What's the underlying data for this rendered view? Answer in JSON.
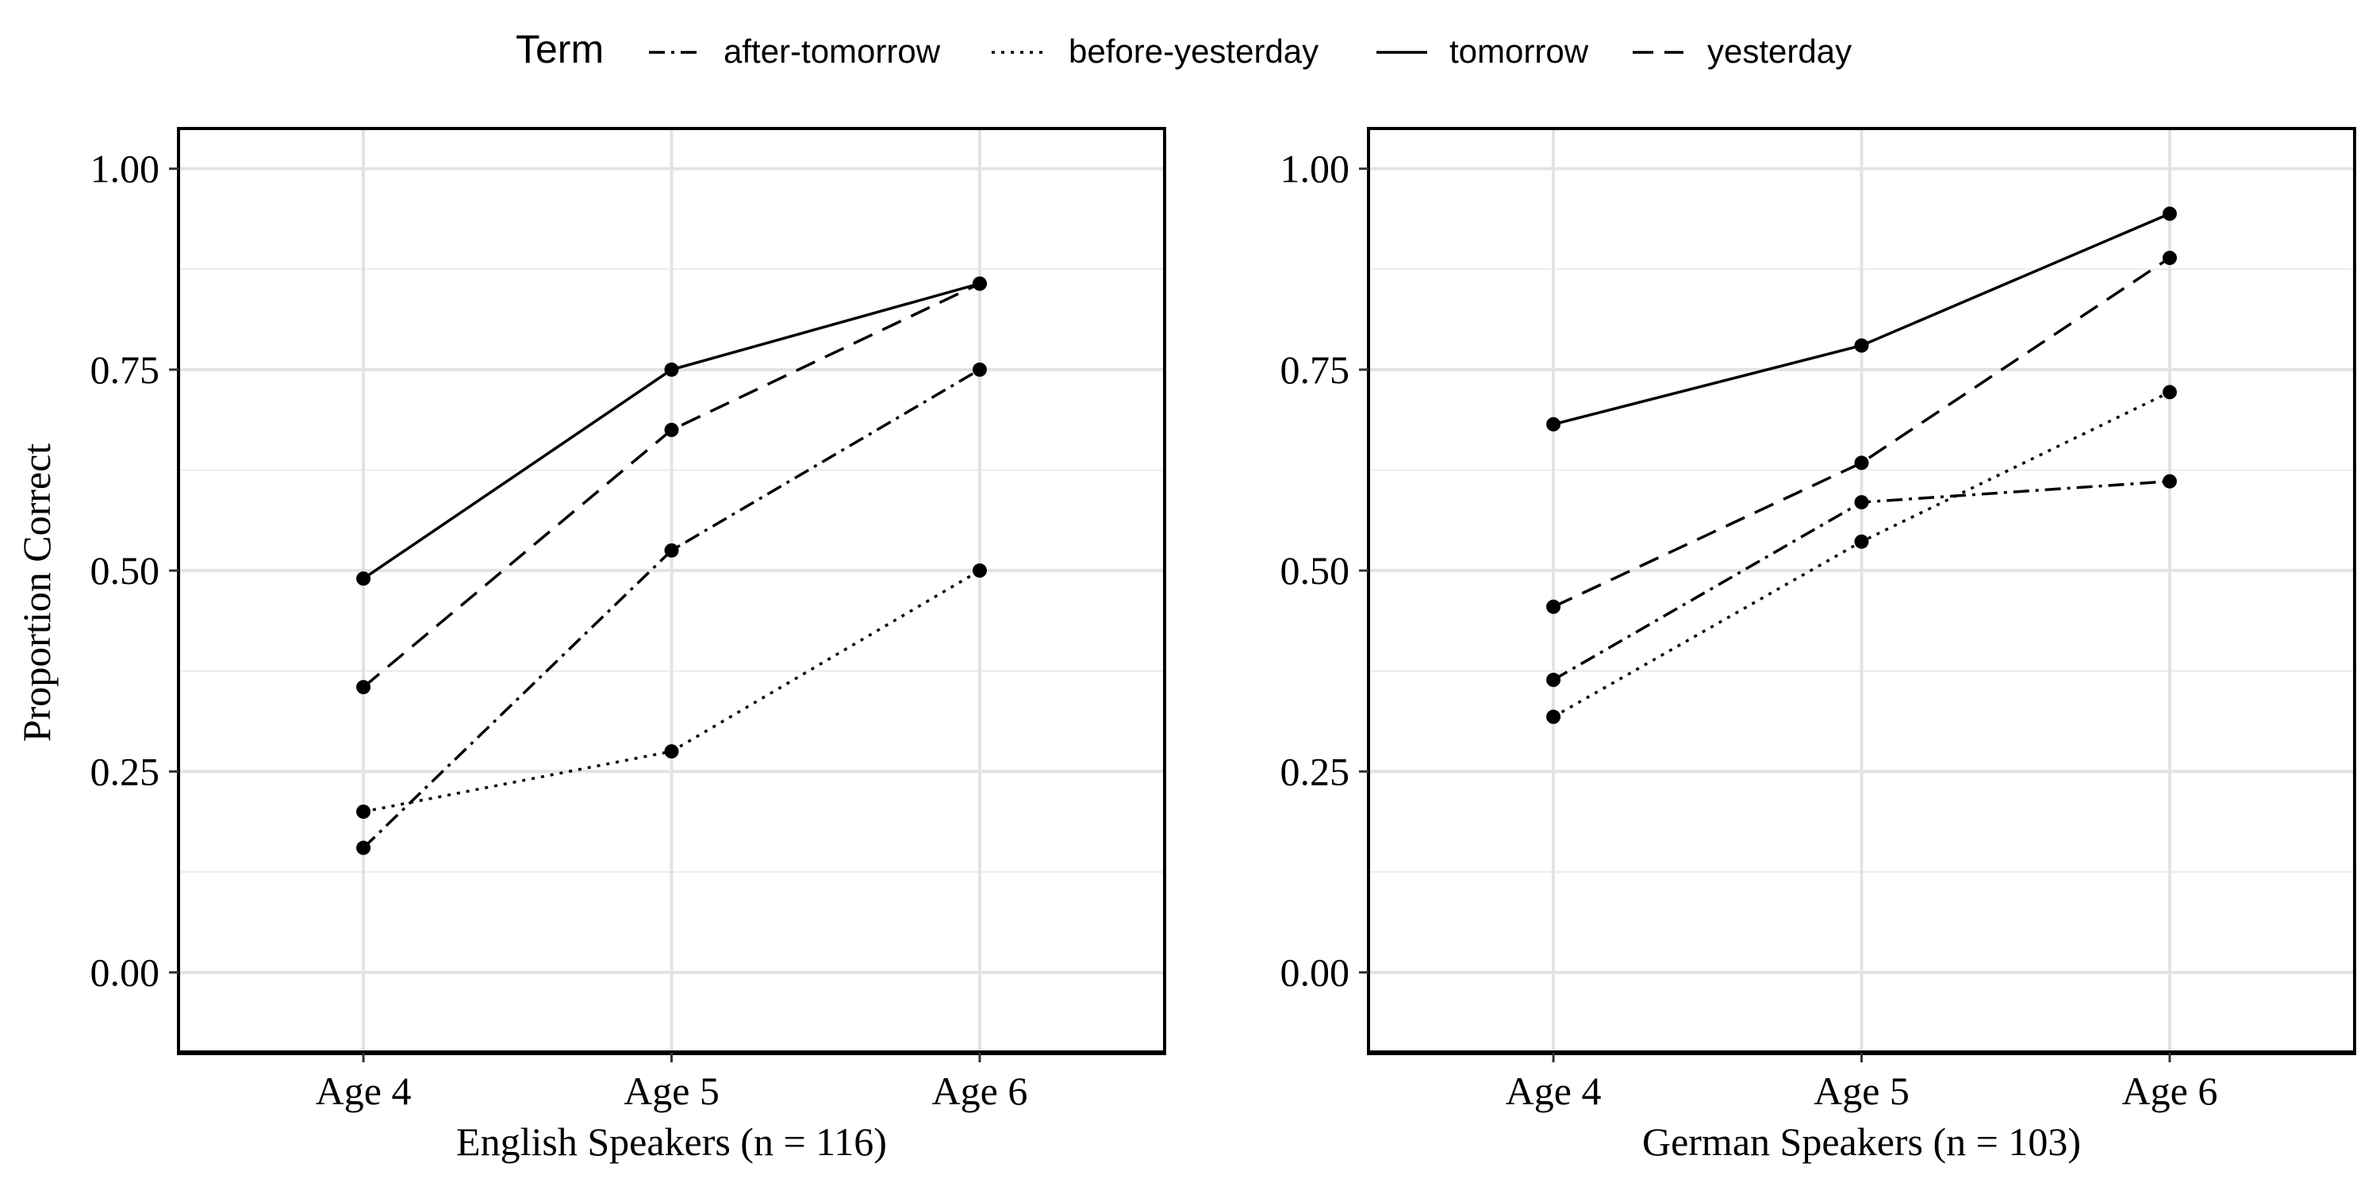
{
  "chart_data": {
    "type": "line",
    "legend": {
      "title": "Term",
      "placement": "top",
      "entries": [
        {
          "name": "after-tomorrow",
          "dash": "dashdot"
        },
        {
          "name": "before-yesterday",
          "dash": "dotted"
        },
        {
          "name": "tomorrow",
          "dash": "solid"
        },
        {
          "name": "yesterday",
          "dash": "dashed"
        }
      ]
    },
    "ylabel": "Proportion Correct",
    "ylim": [
      -0.1,
      1.05
    ],
    "yticks": [
      "0.00",
      "0.25",
      "0.50",
      "0.75",
      "1.00"
    ],
    "grid": true,
    "panels": [
      {
        "xlabel": "English Speakers (n = 116)",
        "categories": [
          "Age 4",
          "Age 5",
          "Age 6"
        ],
        "series": [
          {
            "name": "after-tomorrow",
            "values": [
              0.155,
              0.525,
              0.75
            ]
          },
          {
            "name": "before-yesterday",
            "values": [
              0.2,
              0.275,
              0.5
            ]
          },
          {
            "name": "tomorrow",
            "values": [
              0.49,
              0.75,
              0.857
            ]
          },
          {
            "name": "yesterday",
            "values": [
              0.355,
              0.675,
              0.857
            ]
          }
        ]
      },
      {
        "xlabel": "German Speakers (n = 103)",
        "categories": [
          "Age 4",
          "Age 5",
          "Age 6"
        ],
        "series": [
          {
            "name": "after-tomorrow",
            "values": [
              0.364,
              0.585,
              0.611
            ]
          },
          {
            "name": "before-yesterday",
            "values": [
              0.318,
              0.536,
              0.722
            ]
          },
          {
            "name": "tomorrow",
            "values": [
              0.682,
              0.78,
              0.944
            ]
          },
          {
            "name": "yesterday",
            "values": [
              0.455,
              0.634,
              0.889
            ]
          }
        ]
      }
    ]
  }
}
